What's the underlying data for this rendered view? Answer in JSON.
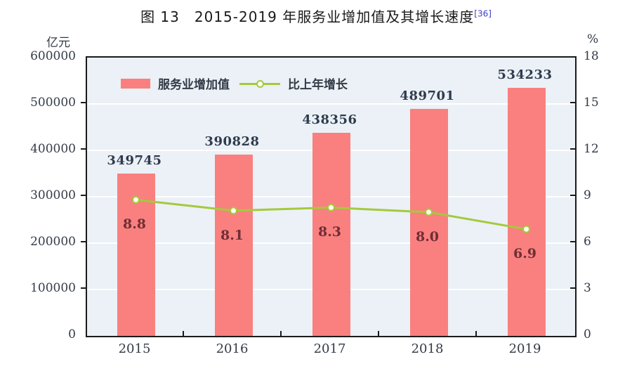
{
  "title": {
    "text": "图 13　2015-2019 年服务业增加值及其增长速度",
    "footnote_ref": "[36]"
  },
  "left_axis": {
    "unit": "亿元",
    "min": 0,
    "max": 600000,
    "step": 100000,
    "tick_labels": [
      "0",
      "100000",
      "200000",
      "300000",
      "400000",
      "500000",
      "600000"
    ]
  },
  "right_axis": {
    "unit": "%",
    "min": 0,
    "max": 18,
    "step": 3,
    "tick_labels": [
      "0",
      "3",
      "6",
      "9",
      "12",
      "15",
      "18"
    ]
  },
  "legend": [
    {
      "label": "服务业增加值",
      "type": "bar"
    },
    {
      "label": "比上年增长",
      "type": "line"
    }
  ],
  "colors": {
    "bar": "#f9807f",
    "line": "#a6c93c",
    "marker_fill": "#fdfff2",
    "plot_bg": "#ebf1f6",
    "grid": "#ffffff",
    "axis": "#1b1b1b",
    "text": "#333b47",
    "value_label": "#2f3b4e",
    "rate_label": "#6f2e35",
    "footnote": "#3a3fc4"
  },
  "chart_data": {
    "type": "bar+line",
    "title": "图 13 2015-2019 年服务业增加值及其增长速度 [36]",
    "categories": [
      "2015",
      "2016",
      "2017",
      "2018",
      "2019"
    ],
    "series": [
      {
        "name": "服务业增加值",
        "type": "bar",
        "axis": "left",
        "unit": "亿元",
        "values": [
          349745,
          390828,
          438356,
          489701,
          534233
        ],
        "value_labels": [
          "349745",
          "390828",
          "438356",
          "489701",
          "534233"
        ]
      },
      {
        "name": "比上年增长",
        "type": "line",
        "axis": "right",
        "unit": "%",
        "values": [
          8.8,
          8.1,
          8.3,
          8.0,
          6.9
        ],
        "value_labels": [
          "8.8",
          "8.1",
          "8.3",
          "8.0",
          "6.9"
        ]
      }
    ],
    "left_ylim": [
      0,
      600000
    ],
    "right_ylim": [
      0,
      18
    ],
    "grid": true,
    "legend_position": "top-left-inside"
  }
}
